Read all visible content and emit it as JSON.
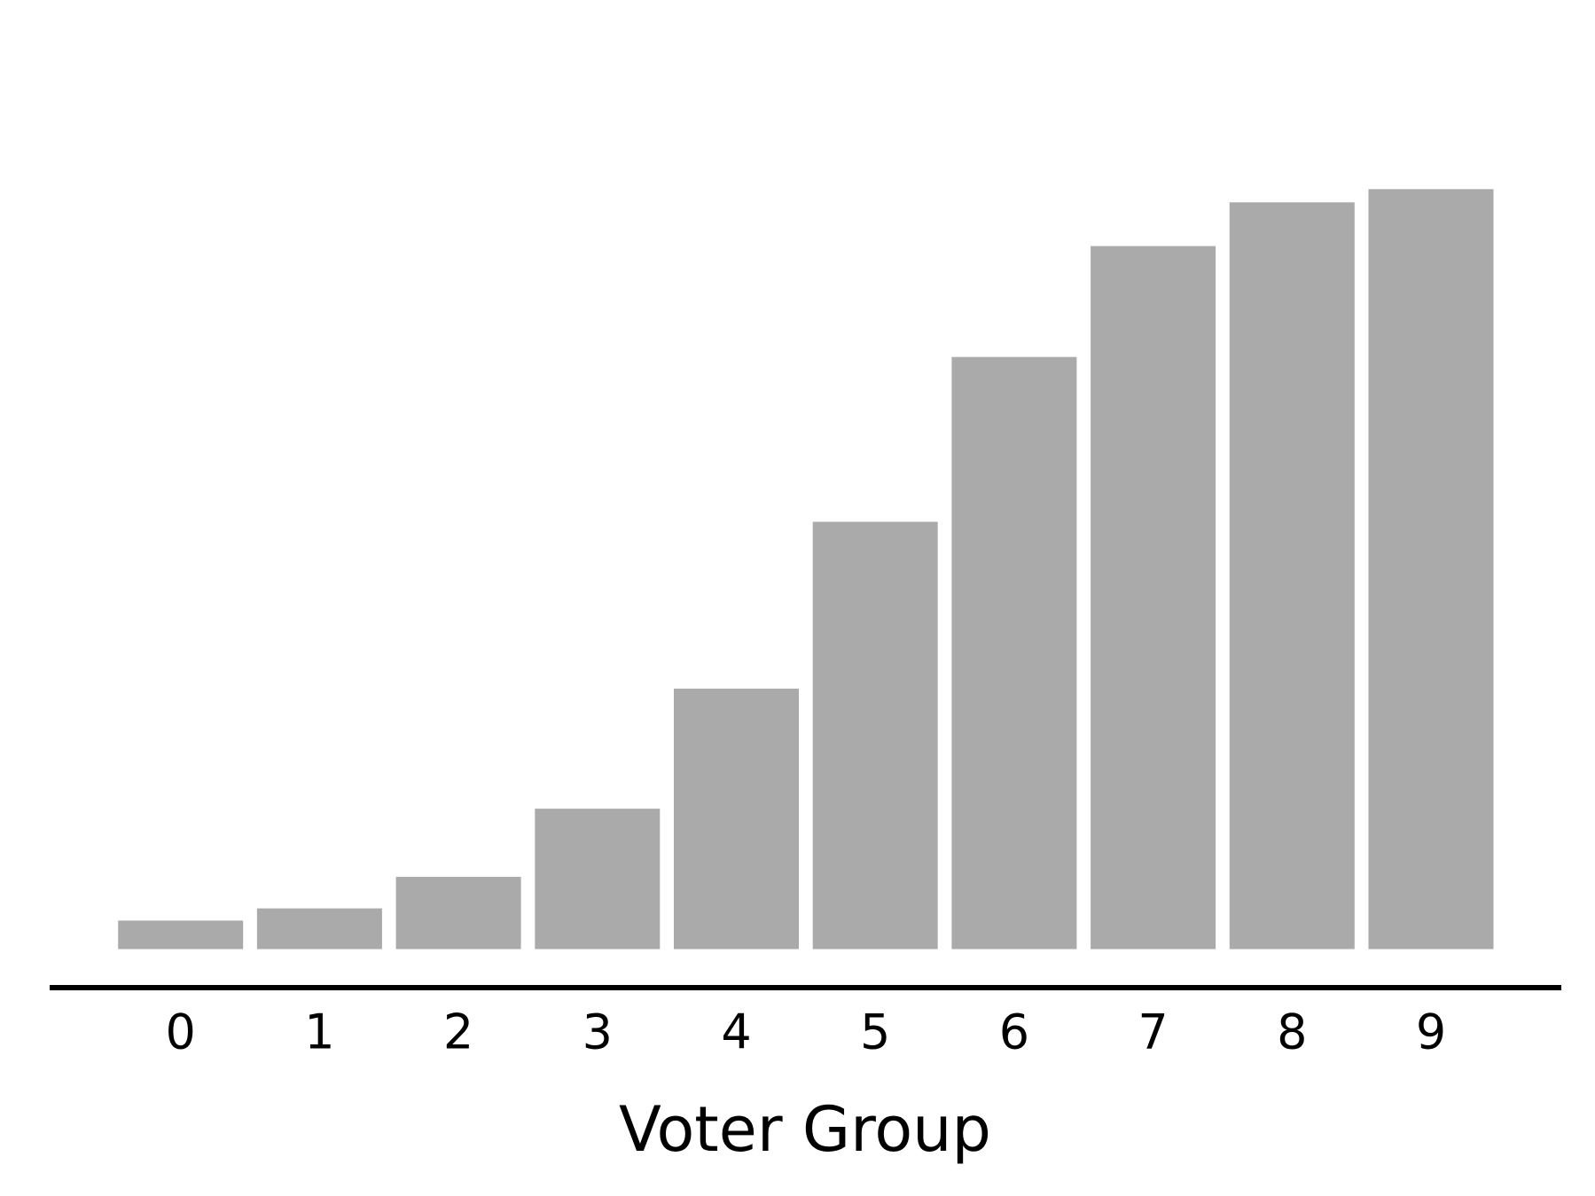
{
  "chart_data": {
    "type": "bar",
    "xlabel": "Voter Group",
    "categories": [
      "0",
      "1",
      "2",
      "3",
      "4",
      "5",
      "6",
      "7",
      "8",
      "9"
    ],
    "values": [
      28,
      40,
      71,
      138,
      256,
      420,
      582,
      691,
      734,
      747
    ],
    "color": "#aaaaaa",
    "ylim": [
      0,
      800
    ],
    "grid": false
  }
}
